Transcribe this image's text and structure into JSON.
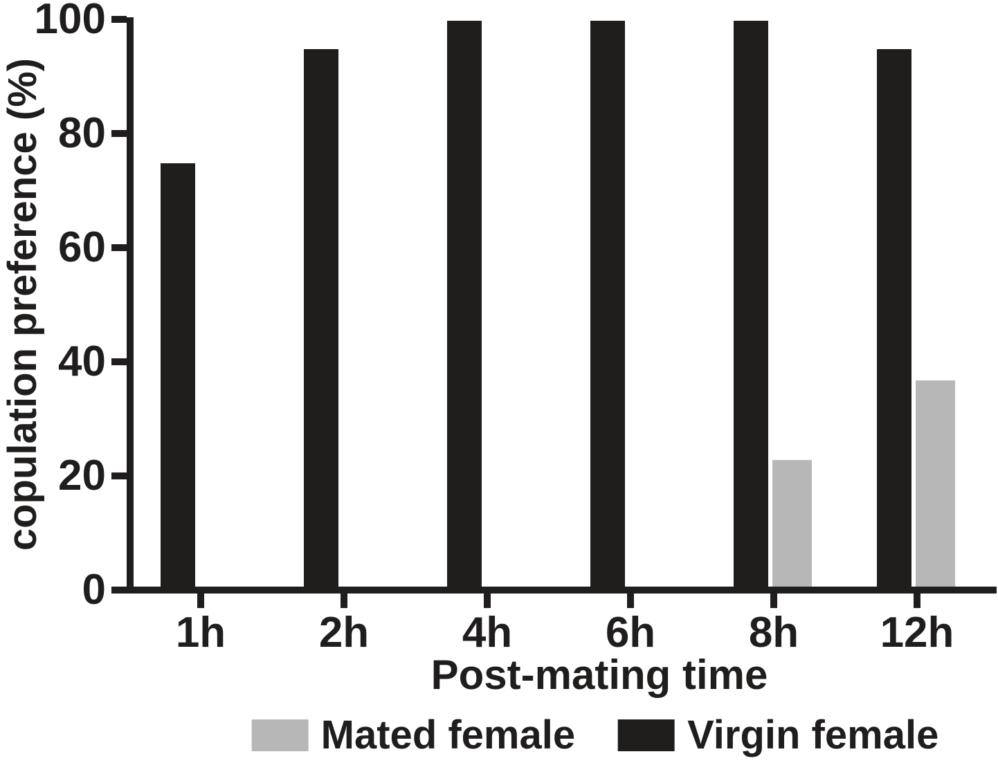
{
  "chart_data": {
    "type": "bar",
    "title": "",
    "categories": [
      "1h",
      "2h",
      "4h",
      "6h",
      "8h",
      "12h"
    ],
    "series": [
      {
        "name": "Virgin female",
        "color": "#201d1d",
        "position_in_group": "left",
        "values": [
          75,
          95,
          100,
          100,
          100,
          95
        ]
      },
      {
        "name": "Mated female",
        "color": "#b7b7b7",
        "position_in_group": "right",
        "values": [
          0,
          0,
          0,
          0,
          23,
          37
        ]
      }
    ],
    "xlabel": "Post-mating time",
    "ylabel": "copulation preference (%)",
    "ylim": [
      0,
      100
    ],
    "yticks": [
      0,
      20,
      40,
      60,
      80,
      100
    ],
    "grid": false,
    "legend_position": "bottom",
    "axis_color": "#201d1d",
    "background_color": "#ffffff"
  },
  "legend": {
    "items": [
      {
        "label": "Mated female",
        "swatch_color": "#b7b7b7"
      },
      {
        "label": "Virgin female",
        "swatch_color": "#201d1d"
      }
    ]
  }
}
